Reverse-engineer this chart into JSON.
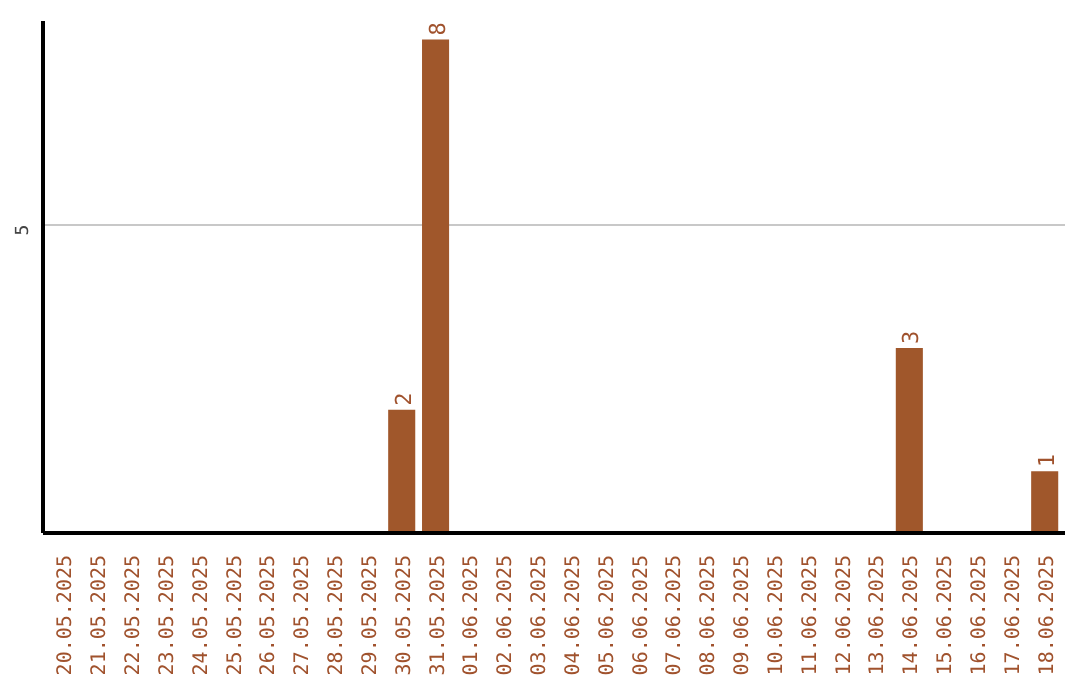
{
  "chart_data": {
    "type": "bar",
    "categories": [
      "20.05.2025",
      "21.05.2025",
      "22.05.2025",
      "23.05.2025",
      "24.05.2025",
      "25.05.2025",
      "26.05.2025",
      "27.05.2025",
      "28.05.2025",
      "29.05.2025",
      "30.05.2025",
      "31.05.2025",
      "01.06.2025",
      "02.06.2025",
      "03.06.2025",
      "04.06.2025",
      "05.06.2025",
      "06.06.2025",
      "07.06.2025",
      "08.06.2025",
      "09.06.2025",
      "10.06.2025",
      "11.06.2025",
      "12.06.2025",
      "13.06.2025",
      "14.06.2025",
      "15.06.2025",
      "16.06.2025",
      "17.06.2025",
      "18.06.2025"
    ],
    "values": [
      0,
      0,
      0,
      0,
      0,
      0,
      0,
      0,
      0,
      0,
      2,
      8,
      0,
      0,
      0,
      0,
      0,
      0,
      0,
      0,
      0,
      0,
      0,
      0,
      0,
      3,
      0,
      0,
      0,
      1
    ],
    "value_labels": [
      null,
      null,
      null,
      null,
      null,
      null,
      null,
      null,
      null,
      null,
      "2",
      "8",
      null,
      null,
      null,
      null,
      null,
      null,
      null,
      null,
      null,
      null,
      null,
      null,
      null,
      "3",
      null,
      null,
      null,
      "1"
    ],
    "color": "#a0572b",
    "ylim": [
      0,
      8.3
    ],
    "yticks": [
      5
    ],
    "grid": "y"
  }
}
